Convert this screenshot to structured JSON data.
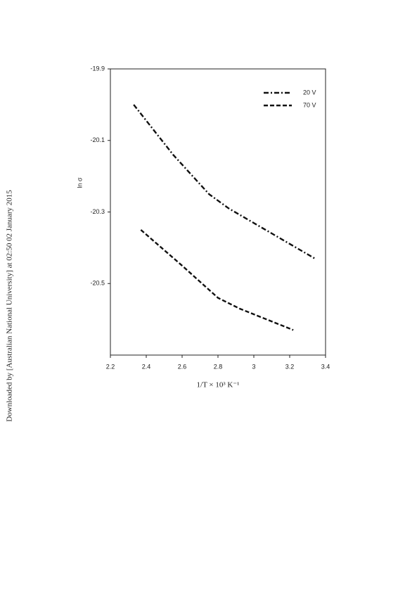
{
  "side_note": "Downloaded by [Australian National University] at 02:50 02 January 2015",
  "chart_data": {
    "type": "line",
    "xlabel": "1/T × 10³ K⁻¹",
    "ylabel": "ln σ",
    "xlim": [
      2.2,
      3.4
    ],
    "xticks": [
      2.2,
      2.4,
      2.6,
      2.8,
      3,
      3.2,
      3.4
    ],
    "ylim": [
      -20.7,
      -19.9
    ],
    "yticks": [
      -19.9,
      -20.1,
      -20.3,
      -20.5
    ],
    "legend": "upper right",
    "series": [
      {
        "name": "20 V",
        "color": "#111111",
        "dash": "dash-dot",
        "x": [
          2.33,
          2.55,
          2.75,
          2.86,
          3.1,
          3.34
        ],
        "values": [
          -20.0,
          -20.14,
          -20.25,
          -20.29,
          -20.36,
          -20.43
        ]
      },
      {
        "name": "70 V",
        "color": "#111111",
        "dash": "dashed",
        "x": [
          2.37,
          2.6,
          2.8,
          2.92,
          3.07,
          3.22
        ],
        "values": [
          -20.35,
          -20.45,
          -20.54,
          -20.57,
          -20.6,
          -20.63
        ]
      }
    ]
  }
}
